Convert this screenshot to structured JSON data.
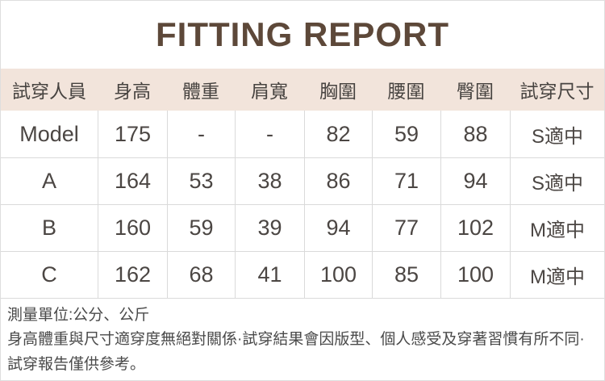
{
  "page": {
    "title": "FITTING REPORT",
    "title_color": "#5d4839",
    "header_bg": "#f2e4db",
    "border_color": "#dadada",
    "text_color": "#4b4643"
  },
  "table": {
    "columns": [
      "試穿人員",
      "身高",
      "體重",
      "肩寬",
      "胸圍",
      "腰圍",
      "臀圍",
      "試穿尺寸"
    ],
    "rows": [
      [
        "Model",
        "175",
        "-",
        "-",
        "82",
        "59",
        "88",
        "S適中"
      ],
      [
        "A",
        "164",
        "53",
        "38",
        "86",
        "71",
        "94",
        "S適中"
      ],
      [
        "B",
        "160",
        "59",
        "39",
        "94",
        "77",
        "102",
        "M適中"
      ],
      [
        "C",
        "162",
        "68",
        "41",
        "100",
        "85",
        "100",
        "M適中"
      ]
    ]
  },
  "notes": {
    "unit": "測量單位:公分、公斤",
    "disclaimer": "身高體重與尺寸適穿度無絕對關係·試穿結果會因版型、個人感受及穿著習慣有所不同·試穿報告僅供參考。"
  }
}
